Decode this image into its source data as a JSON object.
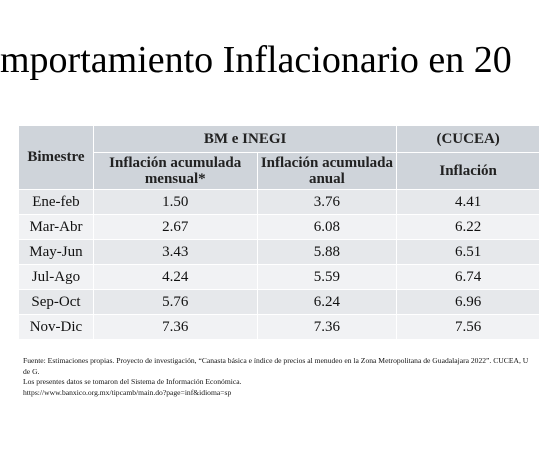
{
  "header": {
    "title": "mportamiento Inflacionario en 20"
  },
  "table": {
    "group_headers": [
      "Bimestre",
      "BM e INEGI",
      "(CUCEA)"
    ],
    "sub_headers": [
      "Inflación acumulada mensual*",
      "Inflación acumulada anual",
      "Inflación"
    ],
    "rows": [
      [
        "Ene-feb",
        "1.50",
        "3.76",
        "4.41"
      ],
      [
        "Mar-Abr",
        "2.67",
        "6.08",
        "6.22"
      ],
      [
        "May-Jun",
        "3.43",
        "5.88",
        "6.51"
      ],
      [
        "Jul-Ago",
        "4.24",
        "5.59",
        "6.74"
      ],
      [
        "Sep-Oct",
        "5.76",
        "6.24",
        "6.96"
      ],
      [
        "Nov-Dic",
        "7.36",
        "7.36",
        "7.56"
      ]
    ]
  },
  "footnotes": [
    "Fuente: Estimaciones propias. Proyecto de investigación, “Canasta básica e índice de precios al menudeo en la Zona Metropolitana de Guadalajara 2022”. CUCEA, U de G.",
    "Los presentes datos se tomaron del Sistema de Información Económica.",
    "https://www.banxico.org.mx/tipcamb/main.do?page=inf&idioma=sp"
  ]
}
